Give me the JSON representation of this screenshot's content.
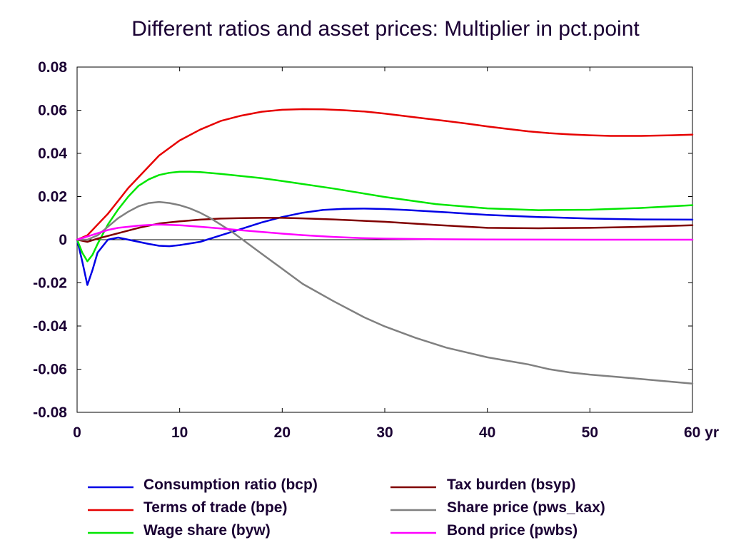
{
  "chart_data": {
    "type": "line",
    "title": "Different ratios and asset prices: Multiplier in pct.point",
    "xlabel": "",
    "ylabel": "",
    "x_unit": "yr",
    "xlim": [
      0,
      60
    ],
    "ylim": [
      -0.08,
      0.08
    ],
    "x_ticks": [
      0,
      10,
      20,
      30,
      40,
      50,
      60
    ],
    "x_tick_labels": [
      "0",
      "10",
      "20",
      "30",
      "40",
      "50",
      "60 yr"
    ],
    "y_ticks": [
      0.08,
      0.06,
      0.04,
      0.02,
      0,
      -0.02,
      -0.04,
      -0.06,
      -0.08
    ],
    "y_tick_labels": [
      "0.08",
      "0.06",
      "0.04",
      "0.02",
      "0",
      "-0.02",
      "-0.04",
      "-0.06",
      "-0.08"
    ],
    "grid": false,
    "zero_line": true,
    "legend_position": "bottom",
    "series": [
      {
        "name": "Consumption ratio (bcp)",
        "color": "#0000e6",
        "x": [
          0,
          0.5,
          1,
          1.5,
          2,
          3,
          4,
          5,
          6,
          7,
          8,
          9,
          10,
          12,
          14,
          16,
          18,
          20,
          22,
          24,
          26,
          28,
          30,
          32,
          35,
          40,
          45,
          50,
          55,
          60
        ],
        "values": [
          0,
          -0.01,
          -0.021,
          -0.014,
          -0.006,
          0.0,
          0.001,
          0.0,
          -0.001,
          -0.002,
          -0.0028,
          -0.003,
          -0.0025,
          -0.001,
          0.002,
          0.005,
          0.008,
          0.0105,
          0.0125,
          0.0138,
          0.0143,
          0.0144,
          0.0142,
          0.0138,
          0.013,
          0.0115,
          0.0105,
          0.0098,
          0.0094,
          0.0093
        ]
      },
      {
        "name": "Terms of trade (bpe)",
        "color": "#e60000",
        "x": [
          0,
          1,
          2,
          3,
          4,
          5,
          6,
          8,
          10,
          12,
          14,
          16,
          18,
          20,
          22,
          24,
          26,
          28,
          30,
          32,
          34,
          36,
          38,
          40,
          42,
          44,
          46,
          48,
          50,
          52,
          55,
          58,
          60
        ],
        "values": [
          0,
          0.002,
          0.007,
          0.012,
          0.018,
          0.024,
          0.029,
          0.039,
          0.046,
          0.051,
          0.055,
          0.0575,
          0.0593,
          0.0602,
          0.0605,
          0.0604,
          0.06,
          0.0594,
          0.0584,
          0.0573,
          0.0561,
          0.055,
          0.0538,
          0.0525,
          0.0513,
          0.0502,
          0.0494,
          0.0488,
          0.0484,
          0.0481,
          0.0481,
          0.0484,
          0.0487
        ]
      },
      {
        "name": "Wage share (byw)",
        "color": "#00e600",
        "x": [
          0,
          0.5,
          1,
          1.5,
          2,
          3,
          4,
          5,
          6,
          7,
          8,
          9,
          10,
          11,
          12,
          14,
          16,
          18,
          20,
          25,
          30,
          35,
          40,
          45,
          50,
          55,
          60
        ],
        "values": [
          0,
          -0.006,
          -0.01,
          -0.007,
          -0.002,
          0.007,
          0.014,
          0.02,
          0.025,
          0.028,
          0.03,
          0.031,
          0.0315,
          0.0315,
          0.0313,
          0.0305,
          0.0295,
          0.0285,
          0.0272,
          0.0237,
          0.0198,
          0.0165,
          0.0145,
          0.0137,
          0.0139,
          0.0147,
          0.016
        ]
      },
      {
        "name": "Tax burden (bsyp)",
        "color": "#800000",
        "x": [
          0,
          1,
          2,
          4,
          6,
          8,
          10,
          12,
          14,
          16,
          18,
          20,
          22,
          25,
          30,
          35,
          40,
          45,
          50,
          55,
          60
        ],
        "values": [
          0,
          -0.001,
          0.0005,
          0.003,
          0.0055,
          0.0075,
          0.0085,
          0.0093,
          0.0098,
          0.01,
          0.0101,
          0.0101,
          0.0099,
          0.0094,
          0.0083,
          0.0068,
          0.0055,
          0.0053,
          0.0055,
          0.006,
          0.0067
        ]
      },
      {
        "name": "Share price (pws_kax)",
        "color": "#808080",
        "x": [
          0,
          1,
          2,
          3,
          4,
          5,
          6,
          7,
          8,
          9,
          10,
          11,
          12,
          13,
          14,
          15,
          16,
          17,
          18,
          20,
          22,
          25,
          28,
          30,
          33,
          36,
          40,
          44,
          46,
          48,
          50,
          53,
          56,
          60
        ],
        "values": [
          0,
          0.0,
          0.002,
          0.006,
          0.01,
          0.013,
          0.0155,
          0.017,
          0.0175,
          0.017,
          0.016,
          0.0145,
          0.0125,
          0.01,
          0.007,
          0.004,
          0.0005,
          -0.003,
          -0.0065,
          -0.0135,
          -0.0205,
          -0.0285,
          -0.036,
          -0.0402,
          -0.0455,
          -0.05,
          -0.0545,
          -0.0578,
          -0.06,
          -0.0615,
          -0.0625,
          -0.0637,
          -0.065,
          -0.0667
        ]
      },
      {
        "name": "Bond price (pwbs)",
        "color": "#ff00ff",
        "x": [
          0,
          1,
          2,
          3,
          4,
          5,
          6,
          7,
          8,
          10,
          12,
          14,
          16,
          18,
          20,
          22,
          25,
          28,
          30,
          35,
          40,
          50,
          60
        ],
        "values": [
          0,
          0.0015,
          0.003,
          0.0045,
          0.0055,
          0.006,
          0.0065,
          0.0068,
          0.007,
          0.0067,
          0.006,
          0.0052,
          0.0044,
          0.0036,
          0.0028,
          0.0021,
          0.0013,
          0.0007,
          0.0005,
          0.0002,
          0.0001,
          0.0,
          0.0
        ]
      }
    ]
  }
}
